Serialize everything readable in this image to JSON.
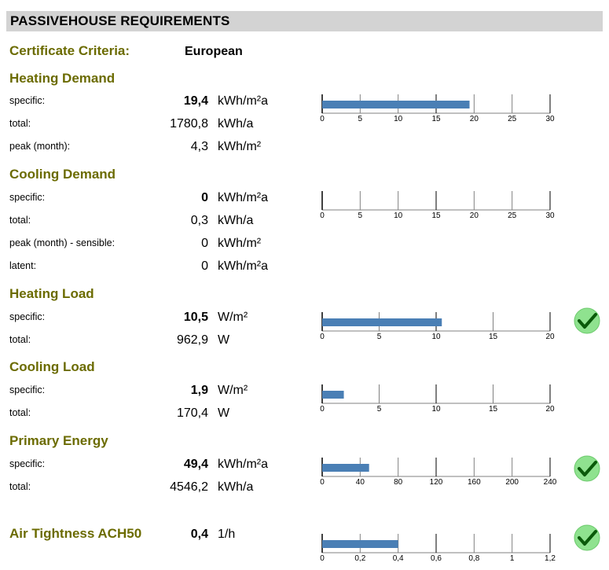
{
  "header": {
    "title": "PASSIVEHOUSE REQUIREMENTS"
  },
  "certificate": {
    "label": "Certificate Criteria:",
    "value": "European"
  },
  "check_icon": {
    "fill": "#8fe28f",
    "stroke_color": "#0a5a0a"
  },
  "bar_color": "#4a7fb5",
  "sections": [
    {
      "title": "Heating Demand",
      "rows": [
        {
          "label": "specific:",
          "value": "19,4",
          "bold": true,
          "unit": "kWh/m²a"
        },
        {
          "label": "total:",
          "value": "1780,8",
          "bold": false,
          "unit": "kWh/a"
        },
        {
          "label": "peak (month):",
          "value": "4,3",
          "bold": false,
          "unit": "kWh/m²"
        }
      ],
      "chart": {
        "value": 19.4,
        "max": 30,
        "ticks": [
          0,
          5,
          10,
          15,
          20,
          25,
          30
        ],
        "tick_labels": [
          "0",
          "5",
          "10",
          "15",
          "20",
          "25",
          "30"
        ]
      },
      "check": false
    },
    {
      "title": "Cooling Demand",
      "rows": [
        {
          "label": "specific:",
          "value": "0",
          "bold": true,
          "unit": "kWh/m²a"
        },
        {
          "label": "total:",
          "value": "0,3",
          "bold": false,
          "unit": "kWh/a"
        },
        {
          "label": "peak (month) - sensible:",
          "value": "0",
          "bold": false,
          "unit": "kWh/m²"
        },
        {
          "label": "latent:",
          "value": "0",
          "bold": false,
          "unit": "kWh/m²a"
        }
      ],
      "chart": {
        "value": 0,
        "max": 30,
        "ticks": [
          0,
          5,
          10,
          15,
          20,
          25,
          30
        ],
        "tick_labels": [
          "0",
          "5",
          "10",
          "15",
          "20",
          "25",
          "30"
        ]
      },
      "check": false
    },
    {
      "title": "Heating Load",
      "rows": [
        {
          "label": "specific:",
          "value": "10,5",
          "bold": true,
          "unit": "W/m²"
        },
        {
          "label": "total:",
          "value": "962,9",
          "bold": false,
          "unit": "W"
        }
      ],
      "chart": {
        "value": 10.5,
        "max": 20,
        "ticks": [
          0,
          5,
          10,
          15,
          20
        ],
        "tick_labels": [
          "0",
          "5",
          "10",
          "15",
          "20"
        ]
      },
      "check": true
    },
    {
      "title": "Cooling Load",
      "rows": [
        {
          "label": "specific:",
          "value": "1,9",
          "bold": true,
          "unit": "W/m²"
        },
        {
          "label": "total:",
          "value": "170,4",
          "bold": false,
          "unit": "W"
        }
      ],
      "chart": {
        "value": 1.9,
        "max": 20,
        "ticks": [
          0,
          5,
          10,
          15,
          20
        ],
        "tick_labels": [
          "0",
          "5",
          "10",
          "15",
          "20"
        ]
      },
      "check": false
    },
    {
      "title": "Primary Energy",
      "rows": [
        {
          "label": "specific:",
          "value": "49,4",
          "bold": true,
          "unit": "kWh/m²a"
        },
        {
          "label": "total:",
          "value": "4546,2",
          "bold": false,
          "unit": "kWh/a"
        }
      ],
      "chart": {
        "value": 49.4,
        "max": 240,
        "ticks": [
          0,
          40,
          80,
          120,
          160,
          200,
          240
        ],
        "tick_labels": [
          "0",
          "40",
          "80",
          "120",
          "160",
          "200",
          "240"
        ]
      },
      "check": true
    },
    {
      "title": "Air Tightness ACH50",
      "rows": [
        {
          "label": "",
          "value": "0,4",
          "bold": true,
          "unit": "1/h"
        }
      ],
      "chart": {
        "value": 0.4,
        "max": 1.2,
        "ticks": [
          0,
          0.2,
          0.4,
          0.6,
          0.8,
          1,
          1.2
        ],
        "tick_labels": [
          "0",
          "0,2",
          "0,4",
          "0,6",
          "0,8",
          "1",
          "1,2"
        ]
      },
      "check": true
    }
  ]
}
